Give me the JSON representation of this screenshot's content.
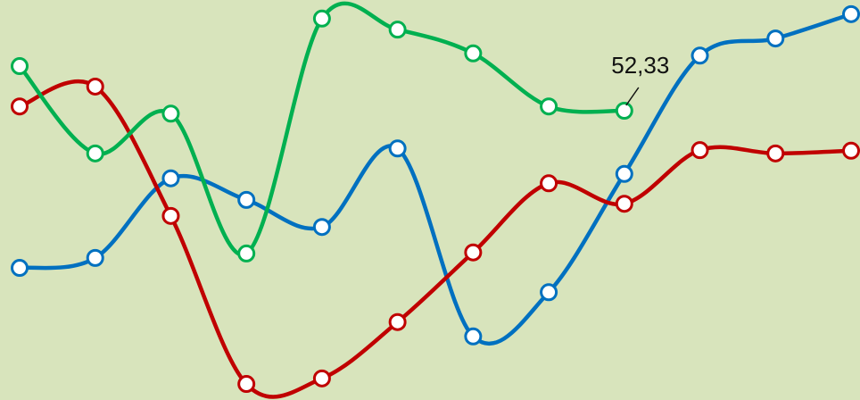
{
  "chart_data": {
    "type": "line",
    "categories": [
      null,
      null,
      null,
      null,
      null,
      null,
      null,
      null,
      null,
      null,
      null,
      null
    ],
    "ylim": [
      0,
      70
    ],
    "series": [
      {
        "color": "#0070c0",
        "values": [
          23.9,
          25.7,
          40.1,
          36.2,
          31.3,
          45.5,
          11.5,
          19.5,
          40.9,
          62.3,
          65.4,
          69.8
        ]
      },
      {
        "color": "#c00000",
        "values": [
          53.1,
          56.7,
          33.3,
          2.9,
          3.9,
          14.1,
          26.7,
          39.2,
          35.5,
          45.2,
          44.6,
          45.1
        ]
      },
      {
        "color": "#00b050",
        "values": [
          60.4,
          44.6,
          51.8,
          26.5,
          69.0,
          67.0,
          62.7,
          53.1,
          52.33,
          null,
          null,
          null
        ],
        "value_labels": [
          null,
          null,
          null,
          null,
          null,
          null,
          null,
          null,
          "52,33",
          null,
          null,
          null
        ]
      }
    ]
  }
}
